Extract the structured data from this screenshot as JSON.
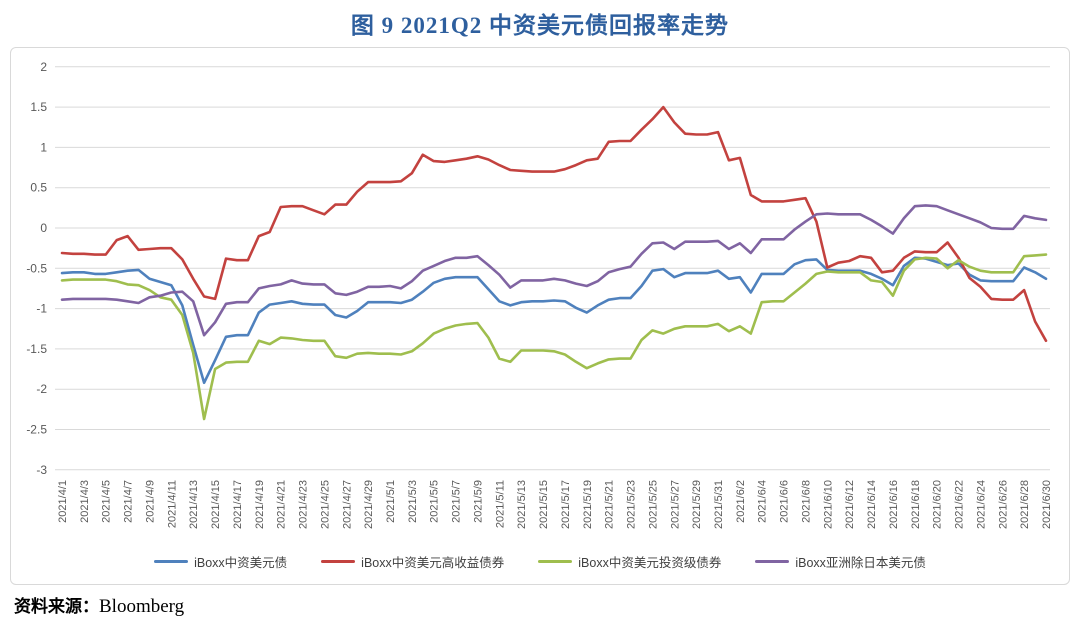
{
  "title": "图 9  2021Q2 中资美元债回报率走势",
  "source": {
    "prefix": "资料来源：",
    "value": "Bloomberg"
  },
  "colors": {
    "title_blue": "#2e5f9e",
    "gridline": "#d9d9d9",
    "tick_text": "#595959",
    "legend_text": "#404040"
  },
  "chart_data": {
    "type": "line",
    "title": "图 9  2021Q2 中资美元债回报率走势",
    "xlabel": "",
    "ylabel": "",
    "ylim": [
      -3,
      2
    ],
    "y_ticks": [
      2,
      1.5,
      1,
      0.5,
      0,
      -0.5,
      -1,
      -1.5,
      -2,
      -2.5,
      -3
    ],
    "grid": true,
    "legend_position": "bottom",
    "x_tick_note": "labels shown every 2nd day",
    "x": [
      "2021/4/1",
      "2021/4/2",
      "2021/4/3",
      "2021/4/4",
      "2021/4/5",
      "2021/4/6",
      "2021/4/7",
      "2021/4/8",
      "2021/4/9",
      "2021/4/10",
      "2021/4/11",
      "2021/4/12",
      "2021/4/13",
      "2021/4/14",
      "2021/4/15",
      "2021/4/16",
      "2021/4/17",
      "2021/4/18",
      "2021/4/19",
      "2021/4/20",
      "2021/4/21",
      "2021/4/22",
      "2021/4/23",
      "2021/4/24",
      "2021/4/25",
      "2021/4/26",
      "2021/4/27",
      "2021/4/28",
      "2021/4/29",
      "2021/4/30",
      "2021/5/1",
      "2021/5/2",
      "2021/5/3",
      "2021/5/4",
      "2021/5/5",
      "2021/5/6",
      "2021/5/7",
      "2021/5/8",
      "2021/5/9",
      "2021/5/10",
      "2021/5/11",
      "2021/5/12",
      "2021/5/13",
      "2021/5/14",
      "2021/5/15",
      "2021/5/16",
      "2021/5/17",
      "2021/5/18",
      "2021/5/19",
      "2021/5/20",
      "2021/5/21",
      "2021/5/22",
      "2021/5/23",
      "2021/5/24",
      "2021/5/25",
      "2021/5/26",
      "2021/5/27",
      "2021/5/28",
      "2021/5/29",
      "2021/5/30",
      "2021/5/31",
      "2021/6/1",
      "2021/6/2",
      "2021/6/3",
      "2021/6/4",
      "2021/6/5",
      "2021/6/6",
      "2021/6/7",
      "2021/6/8",
      "2021/6/9",
      "2021/6/10",
      "2021/6/11",
      "2021/6/12",
      "2021/6/13",
      "2021/6/14",
      "2021/6/15",
      "2021/6/16",
      "2021/6/17",
      "2021/6/18",
      "2021/6/19",
      "2021/6/20",
      "2021/6/21",
      "2021/6/22",
      "2021/6/23",
      "2021/6/24",
      "2021/6/25",
      "2021/6/26",
      "2021/6/27",
      "2021/6/28",
      "2021/6/29",
      "2021/6/30"
    ],
    "series": [
      {
        "name": "iBoxx中资美元债",
        "color": "#4f81bd",
        "values": [
          -0.56,
          -0.55,
          -0.55,
          -0.57,
          -0.57,
          -0.55,
          -0.53,
          -0.52,
          -0.63,
          -0.67,
          -0.71,
          -0.96,
          -1.45,
          -1.92,
          -1.64,
          -1.35,
          -1.33,
          -1.33,
          -1.05,
          -0.95,
          -0.93,
          -0.91,
          -0.94,
          -0.95,
          -0.95,
          -1.08,
          -1.11,
          -1.03,
          -0.92,
          -0.92,
          -0.92,
          -0.93,
          -0.89,
          -0.79,
          -0.68,
          -0.63,
          -0.61,
          -0.61,
          -0.61,
          -0.76,
          -0.91,
          -0.96,
          -0.92,
          -0.91,
          -0.91,
          -0.9,
          -0.91,
          -0.99,
          -1.05,
          -0.96,
          -0.89,
          -0.87,
          -0.87,
          -0.72,
          -0.53,
          -0.51,
          -0.61,
          -0.56,
          -0.56,
          -0.56,
          -0.53,
          -0.63,
          -0.61,
          -0.8,
          -0.57,
          -0.57,
          -0.57,
          -0.45,
          -0.4,
          -0.39,
          -0.52,
          -0.53,
          -0.53,
          -0.53,
          -0.57,
          -0.63,
          -0.71,
          -0.47,
          -0.37,
          -0.38,
          -0.42,
          -0.46,
          -0.44,
          -0.58,
          -0.65,
          -0.66,
          -0.66,
          -0.66,
          -0.49,
          -0.55,
          -0.63
        ]
      },
      {
        "name": "iBoxx中资美元高收益债券",
        "color": "#c3423f",
        "values": [
          -0.31,
          -0.32,
          -0.32,
          -0.33,
          -0.33,
          -0.15,
          -0.1,
          -0.27,
          -0.26,
          -0.25,
          -0.25,
          -0.39,
          -0.63,
          -0.85,
          -0.88,
          -0.38,
          -0.4,
          -0.4,
          -0.1,
          -0.05,
          0.26,
          0.27,
          0.27,
          0.22,
          0.17,
          0.29,
          0.29,
          0.45,
          0.57,
          0.57,
          0.57,
          0.58,
          0.68,
          0.91,
          0.83,
          0.82,
          0.84,
          0.86,
          0.89,
          0.85,
          0.78,
          0.72,
          0.71,
          0.7,
          0.7,
          0.7,
          0.73,
          0.78,
          0.84,
          0.86,
          1.07,
          1.08,
          1.08,
          1.22,
          1.35,
          1.5,
          1.31,
          1.17,
          1.16,
          1.16,
          1.19,
          0.84,
          0.87,
          0.41,
          0.33,
          0.33,
          0.33,
          0.35,
          0.37,
          0.08,
          -0.49,
          -0.43,
          -0.41,
          -0.35,
          -0.37,
          -0.55,
          -0.53,
          -0.37,
          -0.29,
          -0.3,
          -0.3,
          -0.18,
          -0.37,
          -0.62,
          -0.73,
          -0.88,
          -0.89,
          -0.89,
          -0.77,
          -1.16,
          -1.4
        ]
      },
      {
        "name": "iBoxx中资美元投资级债券",
        "color": "#9fbe4e",
        "values": [
          -0.65,
          -0.64,
          -0.64,
          -0.64,
          -0.64,
          -0.66,
          -0.7,
          -0.71,
          -0.77,
          -0.86,
          -0.89,
          -1.08,
          -1.55,
          -2.37,
          -1.75,
          -1.67,
          -1.66,
          -1.66,
          -1.4,
          -1.44,
          -1.36,
          -1.37,
          -1.39,
          -1.4,
          -1.4,
          -1.59,
          -1.61,
          -1.56,
          -1.55,
          -1.56,
          -1.56,
          -1.57,
          -1.53,
          -1.43,
          -1.31,
          -1.25,
          -1.21,
          -1.19,
          -1.18,
          -1.36,
          -1.62,
          -1.66,
          -1.52,
          -1.52,
          -1.52,
          -1.53,
          -1.57,
          -1.66,
          -1.74,
          -1.68,
          -1.63,
          -1.62,
          -1.62,
          -1.39,
          -1.27,
          -1.31,
          -1.25,
          -1.22,
          -1.22,
          -1.22,
          -1.19,
          -1.28,
          -1.22,
          -1.31,
          -0.92,
          -0.91,
          -0.91,
          -0.8,
          -0.69,
          -0.57,
          -0.54,
          -0.55,
          -0.55,
          -0.55,
          -0.65,
          -0.67,
          -0.84,
          -0.53,
          -0.39,
          -0.37,
          -0.38,
          -0.5,
          -0.4,
          -0.48,
          -0.53,
          -0.55,
          -0.55,
          -0.55,
          -0.35,
          -0.34,
          -0.33
        ]
      },
      {
        "name": "iBoxx亚洲除日本美元债",
        "color": "#8064a2",
        "values": [
          -0.89,
          -0.88,
          -0.88,
          -0.88,
          -0.88,
          -0.89,
          -0.91,
          -0.93,
          -0.86,
          -0.84,
          -0.8,
          -0.79,
          -0.91,
          -1.33,
          -1.17,
          -0.94,
          -0.92,
          -0.92,
          -0.75,
          -0.72,
          -0.7,
          -0.65,
          -0.69,
          -0.7,
          -0.7,
          -0.81,
          -0.83,
          -0.79,
          -0.73,
          -0.73,
          -0.72,
          -0.75,
          -0.66,
          -0.53,
          -0.47,
          -0.41,
          -0.37,
          -0.37,
          -0.35,
          -0.46,
          -0.58,
          -0.74,
          -0.65,
          -0.65,
          -0.65,
          -0.63,
          -0.65,
          -0.69,
          -0.72,
          -0.66,
          -0.55,
          -0.51,
          -0.48,
          -0.32,
          -0.19,
          -0.18,
          -0.26,
          -0.17,
          -0.17,
          -0.17,
          -0.16,
          -0.26,
          -0.19,
          -0.31,
          -0.14,
          -0.14,
          -0.14,
          -0.02,
          0.08,
          0.17,
          0.18,
          0.17,
          0.17,
          0.17,
          0.1,
          0.02,
          -0.07,
          0.12,
          0.27,
          0.28,
          0.27,
          0.22,
          0.17,
          0.12,
          0.07,
          0.0,
          -0.01,
          -0.01,
          0.15,
          0.12,
          0.1
        ]
      }
    ]
  }
}
